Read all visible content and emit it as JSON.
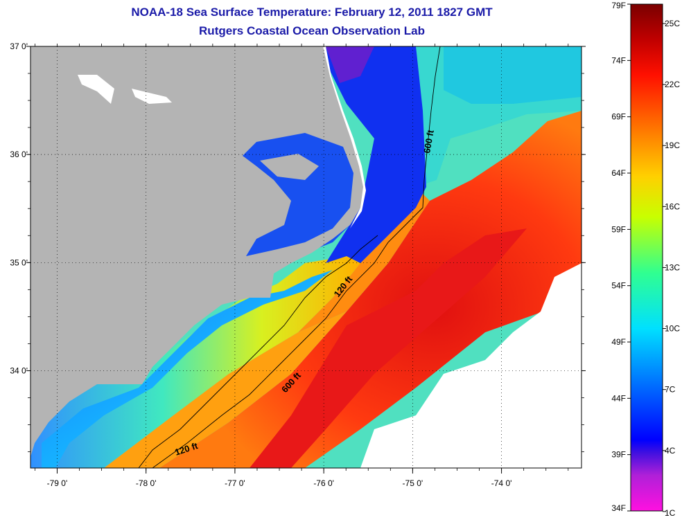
{
  "title": {
    "line1": "NOAA-18 Sea Surface Temperature:  February 12, 2011 1827 GMT",
    "line2": "Rutgers Coastal Ocean Observation Lab"
  },
  "map": {
    "lon_range": [
      -79.3,
      -73.1
    ],
    "lat_range": [
      33.1,
      37.0
    ],
    "x_ticks": [
      {
        "value": -79,
        "label": "-79 0'"
      },
      {
        "value": -78,
        "label": "-78 0'"
      },
      {
        "value": -77,
        "label": "-77 0'"
      },
      {
        "value": -76,
        "label": "-76 0'"
      },
      {
        "value": -75,
        "label": "-75 0'"
      },
      {
        "value": -74,
        "label": "-74 0'"
      }
    ],
    "y_ticks": [
      {
        "value": 37,
        "label": "37 0'"
      },
      {
        "value": 36,
        "label": "36 0'"
      },
      {
        "value": 35,
        "label": "35 0'"
      },
      {
        "value": 34,
        "label": "34 0'"
      }
    ],
    "contour_labels": {
      "c600_north": "600 ft",
      "c120_mid": "120 ft",
      "c600_south": "600 ft",
      "c120_south": "120 ft"
    },
    "grid": "dotted",
    "land_color": "#b4b4b4"
  },
  "colorbar": {
    "fahrenheit_labels": [
      "79F",
      "74F",
      "69F",
      "64F",
      "59F",
      "54F",
      "49F",
      "44F",
      "39F",
      "34F"
    ],
    "celsius_labels": [
      "25C",
      "22C",
      "19C",
      "16C",
      "13C",
      "10C",
      "7C",
      "4C",
      "1C"
    ],
    "stops": [
      "#ff00ff",
      "#9030d8",
      "#0000ff",
      "#0070ff",
      "#00d8ff",
      "#30ff90",
      "#d8ff00",
      "#ffc000",
      "#ff6000",
      "#ff0000",
      "#b00000",
      "#800000"
    ]
  }
}
